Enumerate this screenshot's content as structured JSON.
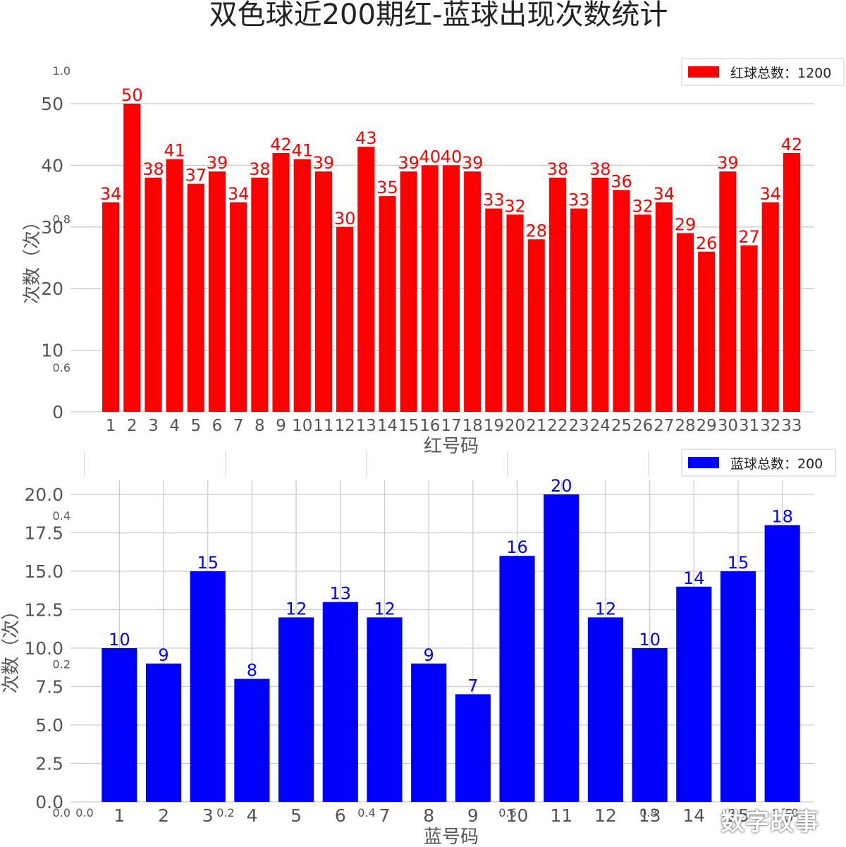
{
  "figure": {
    "title": "双色球近200期红-蓝球出现次数统计",
    "watermark": "数字故事"
  },
  "background_axes": {
    "y_ticks": [
      {
        "label": "1.0",
        "value": 1.0
      },
      {
        "label": "0.8",
        "value": 0.8
      },
      {
        "label": "0.6",
        "value": 0.6
      },
      {
        "label": "0.4",
        "value": 0.4
      },
      {
        "label": "0.2",
        "value": 0.2
      },
      {
        "label": "0.0",
        "value": 0.0
      }
    ],
    "x_ticks": [
      {
        "label": "0.0",
        "value": 0.0
      },
      {
        "label": "0.2",
        "value": 0.2
      },
      {
        "label": "0.4",
        "value": 0.4
      },
      {
        "label": "0.6",
        "value": 0.6
      },
      {
        "label": "0.8",
        "value": 0.8
      },
      {
        "label": "1.0",
        "value": 1.0
      }
    ]
  },
  "chart_data": [
    {
      "type": "bar",
      "color": "#ff0000",
      "xlabel": "红号码",
      "ylabel": "次数（次）",
      "legend": {
        "label": "红球总数：1200",
        "position": "top-right"
      },
      "ylim": [
        0,
        50
      ],
      "yticks": [
        0,
        10,
        20,
        30,
        40,
        50
      ],
      "ytick_labels": [
        "0",
        "10",
        "20",
        "30",
        "40",
        "50"
      ],
      "grid": true,
      "categories": [
        "1",
        "2",
        "3",
        "4",
        "5",
        "6",
        "7",
        "8",
        "9",
        "10",
        "11",
        "12",
        "13",
        "14",
        "15",
        "16",
        "17",
        "18",
        "19",
        "20",
        "21",
        "22",
        "23",
        "24",
        "25",
        "26",
        "27",
        "28",
        "29",
        "30",
        "31",
        "32",
        "33"
      ],
      "values": [
        34,
        50,
        38,
        41,
        37,
        39,
        34,
        38,
        42,
        41,
        39,
        30,
        43,
        35,
        39,
        40,
        40,
        39,
        33,
        32,
        28,
        38,
        33,
        38,
        36,
        32,
        34,
        29,
        26,
        39,
        27,
        34,
        42
      ],
      "value_labels": [
        "34",
        "50",
        "38",
        "41",
        "37",
        "39",
        "34",
        "38",
        "42",
        "41",
        "39",
        "30",
        "43",
        "35",
        "39",
        "40",
        "40",
        "39",
        "33",
        "32",
        "28",
        "38",
        "33",
        "38",
        "36",
        "32",
        "34",
        "29",
        "26",
        "39",
        "27",
        "34",
        "42"
      ]
    },
    {
      "type": "bar",
      "color": "#0000ff",
      "xlabel": "蓝号码",
      "ylabel": "次数（次）",
      "legend": {
        "label": "蓝球总数：200",
        "position": "top-right"
      },
      "ylim": [
        0,
        20
      ],
      "yticks": [
        0,
        2.5,
        5,
        7.5,
        10,
        12.5,
        15,
        17.5,
        20
      ],
      "ytick_labels": [
        "0.0",
        "2.5",
        "5.0",
        "7.5",
        "10.0",
        "12.5",
        "15.0",
        "17.5",
        "20.0"
      ],
      "grid": true,
      "categories": [
        "1",
        "2",
        "3",
        "4",
        "5",
        "6",
        "7",
        "8",
        "9",
        "10",
        "11",
        "12",
        "13",
        "14",
        "15",
        "16"
      ],
      "values": [
        10,
        9,
        15,
        8,
        12,
        13,
        12,
        9,
        7,
        16,
        20,
        12,
        10,
        14,
        15,
        18
      ],
      "value_labels": [
        "10",
        "9",
        "15",
        "8",
        "12",
        "13",
        "12",
        "9",
        "7",
        "16",
        "20",
        "12",
        "10",
        "14",
        "15",
        "18"
      ]
    }
  ]
}
